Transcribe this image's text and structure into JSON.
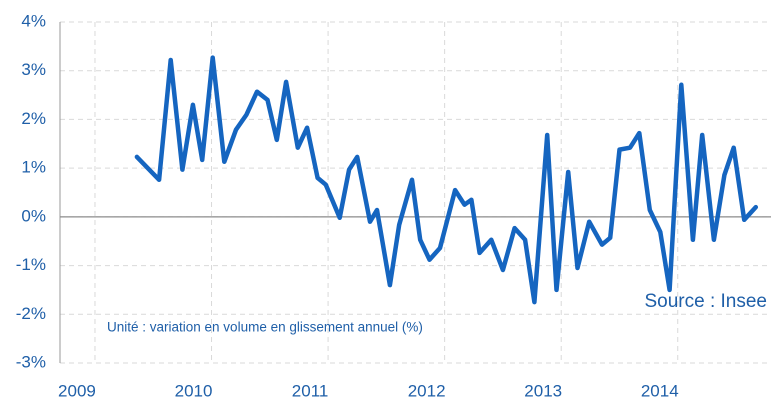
{
  "chart_data": {
    "type": "line",
    "annotations": [
      "Source : Insee",
      "Unité : variation en volume en glissement annuel (%)"
    ],
    "series": [
      {
        "color": "#1565c0",
        "x": [
          2009.36,
          2009.55,
          2009.65,
          2009.75,
          2009.84,
          2009.92,
          2010.01,
          2010.11,
          2010.21,
          2010.3,
          2010.39,
          2010.48,
          2010.56,
          2010.64,
          2010.74,
          2010.82,
          2010.91,
          2010.98,
          2011.1,
          2011.18,
          2011.25,
          2011.36,
          2011.42,
          2011.53,
          2011.61,
          2011.72,
          2011.79,
          2011.87,
          2011.96,
          2012.09,
          2012.17,
          2012.23,
          2012.3,
          2012.4,
          2012.5,
          2012.6,
          2012.69,
          2012.77,
          2012.88,
          2012.96,
          2013.06,
          2013.14,
          2013.24,
          2013.35,
          2013.42,
          2013.5,
          2013.59,
          2013.67,
          2013.76,
          2013.85,
          2013.93,
          2014.03,
          2014.13,
          2014.21,
          2014.31,
          2014.4,
          2014.48,
          2014.57,
          2014.67
        ],
        "values": [
          1.23,
          0.76,
          3.22,
          0.97,
          2.3,
          1.17,
          3.27,
          1.13,
          1.79,
          2.1,
          2.57,
          2.4,
          1.58,
          2.77,
          1.42,
          1.83,
          0.8,
          0.66,
          -0.02,
          0.97,
          1.23,
          -0.1,
          0.14,
          -1.4,
          -0.16,
          0.76,
          -0.47,
          -0.88,
          -0.64,
          0.55,
          0.25,
          0.35,
          -0.74,
          -0.47,
          -1.09,
          -0.23,
          -0.47,
          -1.75,
          1.68,
          -1.5,
          0.92,
          -1.05,
          -0.1,
          -0.57,
          -0.43,
          1.38,
          1.42,
          1.72,
          0.14,
          -0.31,
          -1.5,
          2.71,
          -0.47,
          1.68,
          -0.47,
          0.86,
          1.42,
          -0.06,
          0.2
        ]
      }
    ],
    "xlim": [
      2008.7,
      2014.8
    ],
    "xticks": [
      2009,
      2010,
      2011,
      2012,
      2013,
      2014
    ],
    "ylim": [
      -3,
      4
    ],
    "yticks": [
      {
        "value": -3,
        "label": "-3%"
      },
      {
        "value": -2,
        "label": "-2%"
      },
      {
        "value": -1,
        "label": "-1%"
      },
      {
        "value": 0,
        "label": "0%"
      },
      {
        "value": 1,
        "label": "1%"
      },
      {
        "value": 2,
        "label": "2%"
      },
      {
        "value": 3,
        "label": "3%"
      },
      {
        "value": 4,
        "label": "4%"
      }
    ],
    "grid": true
  }
}
